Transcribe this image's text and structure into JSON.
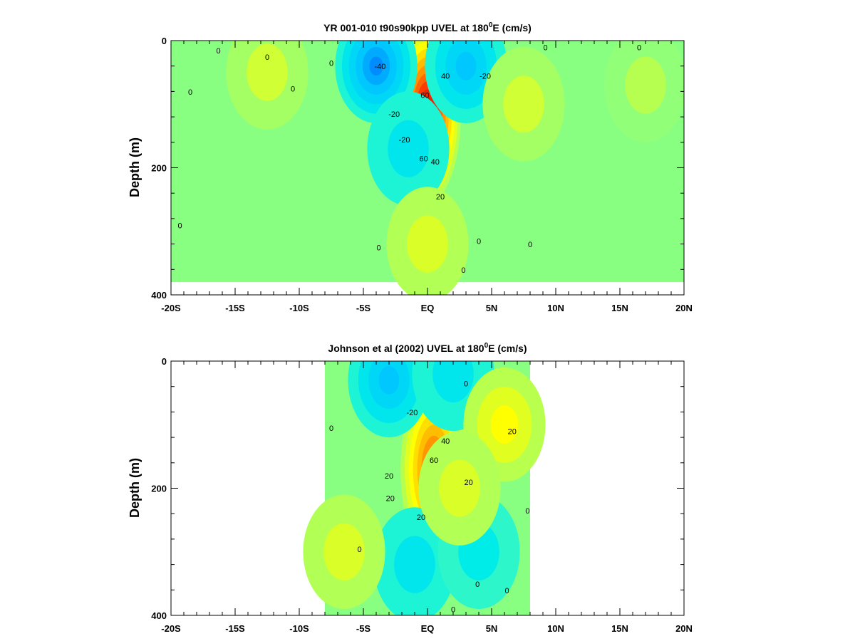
{
  "chart_data": [
    {
      "type": "heatmap",
      "title": "YR 001-010 t90s90kpp UVEL at 180",
      "title_superscript": "0",
      "title_suffix": "E (cm/s)",
      "xlabel": "",
      "ylabel": "Depth (m)",
      "xlim": [
        -20,
        20
      ],
      "ylim": [
        400,
        0
      ],
      "x_ticks": [
        -20,
        -15,
        -10,
        -5,
        0,
        5,
        10,
        15,
        20
      ],
      "x_tick_labels": [
        "-20S",
        "-15S",
        "-10S",
        "-5S",
        "EQ",
        "5N",
        "10N",
        "15N",
        "20N"
      ],
      "y_ticks": [
        0,
        200,
        400
      ],
      "y_tick_labels": [
        "0",
        "200",
        "400"
      ],
      "data_xlim": [
        -20,
        20
      ],
      "data_bottom_depth": 380,
      "features": [
        {
          "lat": 0.0,
          "depth": 115,
          "value": 90
        },
        {
          "lat": -4.0,
          "depth": 40,
          "value": -45
        },
        {
          "lat": 3.0,
          "depth": 40,
          "value": -30
        },
        {
          "lat": -1.5,
          "depth": 170,
          "value": -15
        },
        {
          "lat": 7.5,
          "depth": 100,
          "value": 12
        },
        {
          "lat": 17.0,
          "depth": 70,
          "value": 8
        },
        {
          "lat": -12.5,
          "depth": 50,
          "value": 12
        },
        {
          "lat": 0.0,
          "depth": 320,
          "value": 15
        }
      ],
      "contour_labels": [
        {
          "lat": -3.7,
          "depth": 45,
          "text": "-40"
        },
        {
          "lat": -2.6,
          "depth": 120,
          "text": "-20"
        },
        {
          "lat": 4.5,
          "depth": 60,
          "text": "-20"
        },
        {
          "lat": -1.8,
          "depth": 160,
          "text": "-20"
        },
        {
          "lat": 0.6,
          "depth": 195,
          "text": "40"
        },
        {
          "lat": 1.0,
          "depth": 250,
          "text": "20"
        },
        {
          "lat": -0.2,
          "depth": 90,
          "text": "60"
        },
        {
          "lat": -0.3,
          "depth": 190,
          "text": "60"
        },
        {
          "lat": 1.4,
          "depth": 60,
          "text": "40"
        },
        {
          "lat": -18.5,
          "depth": 85,
          "text": "0"
        },
        {
          "lat": -16.3,
          "depth": 20,
          "text": "0"
        },
        {
          "lat": -12.5,
          "depth": 30,
          "text": "0"
        },
        {
          "lat": -10.5,
          "depth": 80,
          "text": "0"
        },
        {
          "lat": -7.5,
          "depth": 40,
          "text": "0"
        },
        {
          "lat": -19.3,
          "depth": 295,
          "text": "0"
        },
        {
          "lat": -3.8,
          "depth": 330,
          "text": "0"
        },
        {
          "lat": 4.0,
          "depth": 320,
          "text": "0"
        },
        {
          "lat": 2.8,
          "depth": 365,
          "text": "0"
        },
        {
          "lat": 8.0,
          "depth": 325,
          "text": "0"
        },
        {
          "lat": 9.2,
          "depth": 15,
          "text": "0"
        },
        {
          "lat": 16.5,
          "depth": 15,
          "text": "0"
        }
      ]
    },
    {
      "type": "heatmap",
      "title": "Johnson et al (2002) UVEL at 180",
      "title_superscript": "0",
      "title_suffix": "E (cm/s)",
      "xlabel": "",
      "ylabel": "Depth (m)",
      "xlim": [
        -20,
        20
      ],
      "ylim": [
        400,
        0
      ],
      "x_ticks": [
        -20,
        -15,
        -10,
        -5,
        0,
        5,
        10,
        15,
        20
      ],
      "x_tick_labels": [
        "-20S",
        "-15S",
        "-10S",
        "-5S",
        "EQ",
        "5N",
        "10N",
        "15N",
        "20N"
      ],
      "y_ticks": [
        0,
        200,
        400
      ],
      "y_tick_labels": [
        "0",
        "200",
        "400"
      ],
      "data_xlim": [
        -8,
        8
      ],
      "data_bottom_depth": 400,
      "features": [
        {
          "lat": 0.5,
          "depth": 170,
          "value": 65
        },
        {
          "lat": -3.0,
          "depth": 30,
          "value": -30
        },
        {
          "lat": 2.0,
          "depth": 20,
          "value": -15
        },
        {
          "lat": 6.0,
          "depth": 100,
          "value": 25
        },
        {
          "lat": -1.0,
          "depth": 320,
          "value": -15
        },
        {
          "lat": 4.0,
          "depth": 300,
          "value": -12
        },
        {
          "lat": -6.5,
          "depth": 300,
          "value": 15
        },
        {
          "lat": 2.5,
          "depth": 200,
          "value": 15
        }
      ],
      "contour_labels": [
        {
          "lat": -1.2,
          "depth": 85,
          "text": "-20"
        },
        {
          "lat": 1.4,
          "depth": 130,
          "text": "40"
        },
        {
          "lat": 0.5,
          "depth": 160,
          "text": "60"
        },
        {
          "lat": -3.0,
          "depth": 185,
          "text": "20"
        },
        {
          "lat": -2.9,
          "depth": 220,
          "text": "20"
        },
        {
          "lat": -0.5,
          "depth": 250,
          "text": "20"
        },
        {
          "lat": 3.2,
          "depth": 195,
          "text": "20"
        },
        {
          "lat": 6.6,
          "depth": 115,
          "text": "20"
        },
        {
          "lat": -7.5,
          "depth": 110,
          "text": "0"
        },
        {
          "lat": -5.3,
          "depth": 300,
          "text": "0"
        },
        {
          "lat": 3.0,
          "depth": 40,
          "text": "0"
        },
        {
          "lat": 3.9,
          "depth": 355,
          "text": "0"
        },
        {
          "lat": 2.0,
          "depth": 395,
          "text": "0"
        },
        {
          "lat": 6.2,
          "depth": 365,
          "text": "0"
        },
        {
          "lat": 7.8,
          "depth": 240,
          "text": "0"
        }
      ]
    }
  ]
}
